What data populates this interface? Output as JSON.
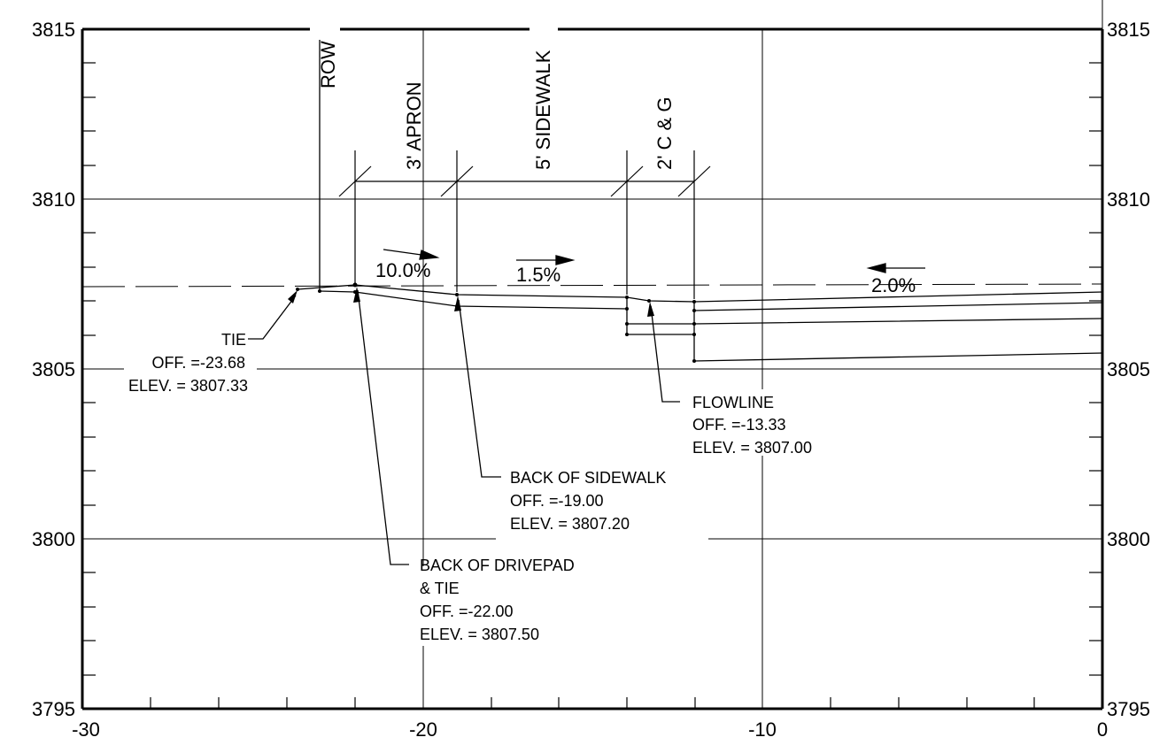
{
  "axes": {
    "x_ticks": [
      "-30",
      "-20",
      "-10",
      "0"
    ],
    "y_ticks_left": [
      "3815",
      "3810",
      "3805",
      "3800",
      "3795"
    ],
    "y_ticks_right": [
      "3815",
      "3810",
      "3805",
      "3800",
      "3795"
    ]
  },
  "segments": {
    "row": "ROW",
    "apron": "3' APRON",
    "sidewalk": "5' SIDEWALK",
    "curb": "2' C & G"
  },
  "slopes": {
    "apron": "10.0%",
    "sidewalk": "1.5%",
    "road": "2.0%"
  },
  "callouts": {
    "tie": {
      "title": "TIE",
      "off": "OFF. =-23.68",
      "elev": "ELEV. = 3807.33"
    },
    "drivepad": {
      "title": "BACK OF DRIVEPAD",
      "title2": "& TIE",
      "off": "OFF. =-22.00",
      "elev": "ELEV. = 3807.50"
    },
    "sidewalk": {
      "title": "BACK OF SIDEWALK",
      "off": "OFF. =-19.00",
      "elev": "ELEV. = 3807.20"
    },
    "flowline": {
      "title": "FLOWLINE",
      "off": "OFF. =-13.33",
      "elev": "ELEV. = 3807.00"
    }
  }
}
